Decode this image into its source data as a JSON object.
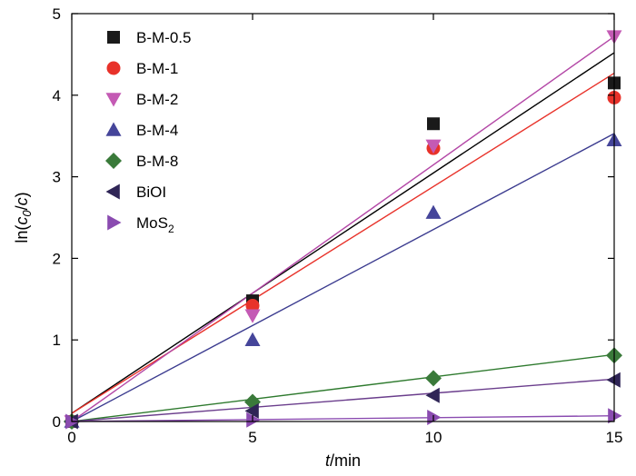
{
  "chart_data": {
    "type": "scatter",
    "xlabel_italic": "t",
    "xlabel_rest": "/min",
    "ylabel_prefix": "ln(",
    "ylabel_c0": "c",
    "ylabel_sub0": "0",
    "ylabel_mid": "/",
    "ylabel_c": "c",
    "ylabel_suffix": ")",
    "xlim": [
      0,
      15
    ],
    "ylim": [
      0,
      5
    ],
    "xticks": [
      0,
      5,
      10,
      15
    ],
    "yticks": [
      0,
      1,
      2,
      3,
      4,
      5
    ],
    "grid": false,
    "legend_position": "top-left",
    "series": [
      {
        "name": "B-M-0.5",
        "marker": "square",
        "color": "#1a1a1a",
        "line_color": "#000000",
        "x": [
          0,
          5,
          10,
          15
        ],
        "y": [
          0.0,
          1.48,
          3.65,
          4.15
        ],
        "fit": [
          0.1,
          4.52
        ]
      },
      {
        "name": "B-M-1",
        "marker": "circle",
        "color": "#e8322a",
        "line_color": "#e8322a",
        "x": [
          0,
          5,
          10,
          15
        ],
        "y": [
          0.0,
          1.42,
          3.35,
          3.97
        ],
        "fit": [
          0.1,
          4.27
        ]
      },
      {
        "name": "B-M-2",
        "marker": "triangle-down",
        "color": "#c45ab4",
        "line_color": "#b347a6",
        "x": [
          0,
          5,
          10,
          15
        ],
        "y": [
          0.0,
          1.3,
          3.38,
          4.72
        ],
        "fit": [
          0.0,
          4.72
        ]
      },
      {
        "name": "B-M-4",
        "marker": "triangle-up",
        "color": "#45459a",
        "line_color": "#3b3b8f",
        "x": [
          0,
          5,
          10,
          15
        ],
        "y": [
          0.0,
          1.0,
          2.56,
          3.45
        ],
        "fit": [
          0.0,
          3.53
        ]
      },
      {
        "name": "B-M-8",
        "marker": "diamond",
        "color": "#3a7a3a",
        "line_color": "#2e7a2e",
        "x": [
          0,
          5,
          10,
          15
        ],
        "y": [
          0.0,
          0.24,
          0.53,
          0.81
        ],
        "fit": [
          0.0,
          0.82
        ]
      },
      {
        "name": "BiOI",
        "marker": "triangle-left",
        "color": "#2f2556",
        "line_color": "#6a3d8c",
        "x": [
          0,
          5,
          10,
          15
        ],
        "y": [
          0.0,
          0.13,
          0.32,
          0.51
        ],
        "fit": [
          0.0,
          0.52
        ]
      },
      {
        "name": "MoS",
        "name_sub": "2",
        "marker": "triangle-right",
        "color": "#8a4bb0",
        "line_color": "#8a4bb0",
        "x": [
          0,
          5,
          10,
          15
        ],
        "y": [
          0.0,
          0.02,
          0.05,
          0.07
        ],
        "fit": [
          0.0,
          0.07
        ]
      }
    ]
  }
}
